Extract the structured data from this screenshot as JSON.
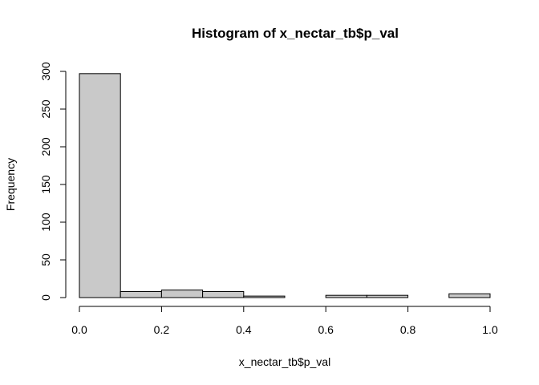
{
  "chart_data": {
    "type": "bar",
    "title": "Histogram of x_nectar_tb$p_val",
    "xlabel": "x_nectar_tb$p_val",
    "ylabel": "Frequency",
    "bins": [
      {
        "x0": 0.0,
        "x1": 0.1,
        "count": 297
      },
      {
        "x0": 0.1,
        "x1": 0.2,
        "count": 8
      },
      {
        "x0": 0.2,
        "x1": 0.3,
        "count": 10
      },
      {
        "x0": 0.3,
        "x1": 0.4,
        "count": 8
      },
      {
        "x0": 0.4,
        "x1": 0.5,
        "count": 2
      },
      {
        "x0": 0.5,
        "x1": 0.6,
        "count": 0
      },
      {
        "x0": 0.6,
        "x1": 0.7,
        "count": 3
      },
      {
        "x0": 0.7,
        "x1": 0.8,
        "count": 3
      },
      {
        "x0": 0.8,
        "x1": 0.9,
        "count": 0
      },
      {
        "x0": 0.9,
        "x1": 1.0,
        "count": 5
      }
    ],
    "xlim": [
      0.0,
      1.0
    ],
    "ylim": [
      0,
      300
    ],
    "xticks": [
      "0.0",
      "0.2",
      "0.4",
      "0.6",
      "0.8",
      "1.0"
    ],
    "yticks": [
      "0",
      "50",
      "100",
      "150",
      "200",
      "250",
      "300"
    ],
    "grid": false,
    "bar_color": "#c9c9c9"
  }
}
